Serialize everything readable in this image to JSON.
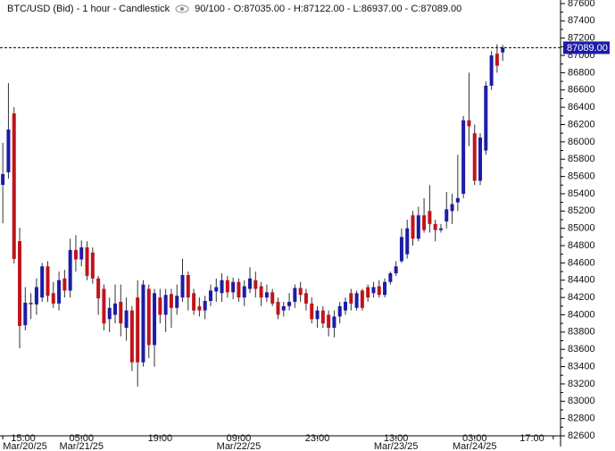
{
  "chart_data": {
    "type": "candlestick",
    "title": "BTC/USD (Bid) - 1 hour - Candlestick",
    "info": "90/100 - O:87035.00 - H:87122.00 - L:86937.00 - C:87089.00",
    "up_color": "#1c1ca8",
    "down_color": "#c0141c",
    "open": [
      85503,
      85648,
      86329,
      84852,
      83880,
      84140,
      84120,
      84200,
      84560,
      84250,
      84130,
      84420,
      84280,
      84750,
      84640,
      84780,
      84720,
      84420,
      84300,
      83950,
      84000,
      84150,
      83850,
      84050,
      84200,
      83450,
      84300,
      83650,
      84200,
      84000,
      84240,
      84080,
      84200,
      84460,
      84250,
      84100,
      84050,
      84160,
      84270,
      84250,
      84400,
      84260,
      84380,
      84200,
      84300,
      84400,
      84330,
      84200,
      84260,
      84150,
      84050,
      84100,
      84150,
      84310,
      84250,
      84130,
      83950,
      84050,
      84000,
      83850,
      83980,
      84050,
      84250,
      84080,
      84280,
      84320,
      84250,
      84330,
      84230,
      84380,
      84480,
      84620,
      84700,
      85150,
      84880,
      85150,
      85200,
      85050,
      84980,
      85080,
      85200,
      85300,
      85400,
      86250,
      86100,
      85550,
      85900,
      86650,
      87020,
      87035
    ],
    "high": [
      85989,
      86681,
      86402,
      85007,
      84320,
      84250,
      84420,
      84600,
      84620,
      84380,
      84500,
      84520,
      84880,
      84920,
      84860,
      84850,
      84780,
      84450,
      84350,
      84200,
      84350,
      84350,
      84200,
      84100,
      84400,
      84400,
      84350,
      84300,
      84300,
      84300,
      84300,
      84350,
      84650,
      84500,
      84300,
      84200,
      84220,
      84350,
      84420,
      84480,
      84450,
      84430,
      84420,
      84400,
      84550,
      84500,
      84380,
      84350,
      84300,
      84200,
      84150,
      84250,
      84350,
      84380,
      84300,
      84200,
      84100,
      84100,
      84050,
      84050,
      84150,
      84200,
      84300,
      84280,
      84300,
      84350,
      84380,
      84400,
      84420,
      84500,
      84620,
      85000,
      85100,
      85200,
      85250,
      85350,
      85500,
      85100,
      85050,
      85420,
      85400,
      85850,
      86300,
      86800,
      86200,
      86100,
      86700,
      87050,
      87130,
      87122
    ],
    "low": [
      85059,
      85575,
      84594,
      83612,
      83820,
      83950,
      84000,
      84150,
      84150,
      84080,
      84050,
      84200,
      84200,
      84500,
      84560,
      84400,
      84360,
      84000,
      83820,
      83800,
      83900,
      83750,
      83700,
      83350,
      83170,
      83400,
      83500,
      83400,
      83900,
      83800,
      83850,
      84000,
      84150,
      84050,
      84000,
      83980,
      83950,
      84100,
      84150,
      84150,
      84200,
      84180,
      84150,
      84100,
      84250,
      84200,
      84100,
      84150,
      84100,
      83950,
      83980,
      84050,
      84080,
      84150,
      84050,
      83900,
      83850,
      83850,
      83750,
      83740,
      83900,
      84000,
      84050,
      84050,
      84050,
      84150,
      84200,
      84200,
      84200,
      84350,
      84450,
      84600,
      84650,
      84800,
      84850,
      84950,
      84950,
      84850,
      84950,
      85000,
      85050,
      85200,
      85350,
      85950,
      85500,
      85500,
      85850,
      86600,
      86800,
      86937
    ],
    "close": [
      85627,
      86143,
      84646,
      83871,
      84140,
      84120,
      84320,
      84560,
      84220,
      84130,
      84400,
      84280,
      84750,
      84640,
      84780,
      84450,
      84420,
      84190,
      83900,
      84080,
      84130,
      83900,
      84050,
      83450,
      83450,
      84350,
      83650,
      84250,
      84000,
      84230,
      84080,
      84220,
      84460,
      84200,
      84050,
      84050,
      84160,
      84280,
      84320,
      84400,
      84260,
      84380,
      84200,
      84330,
      84420,
      84300,
      84200,
      84260,
      84130,
      84000,
      84100,
      84150,
      84310,
      84230,
      84130,
      83950,
      84050,
      83900,
      83850,
      83980,
      84100,
      84150,
      84130,
      84250,
      84080,
      84200,
      84320,
      84230,
      84380,
      84480,
      84560,
      84900,
      85000,
      84880,
      85150,
      84980,
      85050,
      84980,
      85000,
      85220,
      85280,
      85350,
      86250,
      86180,
      85550,
      86050,
      86650,
      87000,
      86880,
      87089
    ],
    "ylim": [
      82600,
      87641
    ],
    "xlim": [
      -0.5,
      99.3
    ],
    "yticks": [
      82600,
      82800,
      83000,
      83200,
      83400,
      83600,
      83800,
      84000,
      84200,
      84400,
      84600,
      84800,
      85000,
      85200,
      85400,
      85600,
      85800,
      86000,
      86200,
      86400,
      86600,
      86800,
      87000,
      87200,
      87400,
      87600
    ],
    "xticks": [
      {
        "value": 0,
        "label": "15:00"
      },
      {
        "value": 14,
        "label": "05:00"
      },
      {
        "value": 28,
        "label": "19:00"
      },
      {
        "value": 42,
        "label": "09:00"
      },
      {
        "value": 56,
        "label": "23:00"
      },
      {
        "value": 70,
        "label": "13:00"
      },
      {
        "value": 84,
        "label": "03:00"
      },
      {
        "value": 98,
        "label": "17:00"
      }
    ],
    "xdates": [
      {
        "value": 0,
        "label": "Mar/20/25"
      },
      {
        "value": 14,
        "label": "Mar/21/25"
      },
      {
        "value": 42,
        "label": "Mar/22/25"
      },
      {
        "value": 70,
        "label": "Mar/23/25"
      },
      {
        "value": 84,
        "label": "Mar/24/25"
      }
    ],
    "last_price": {
      "value": 87089,
      "label": "87089.00"
    }
  }
}
